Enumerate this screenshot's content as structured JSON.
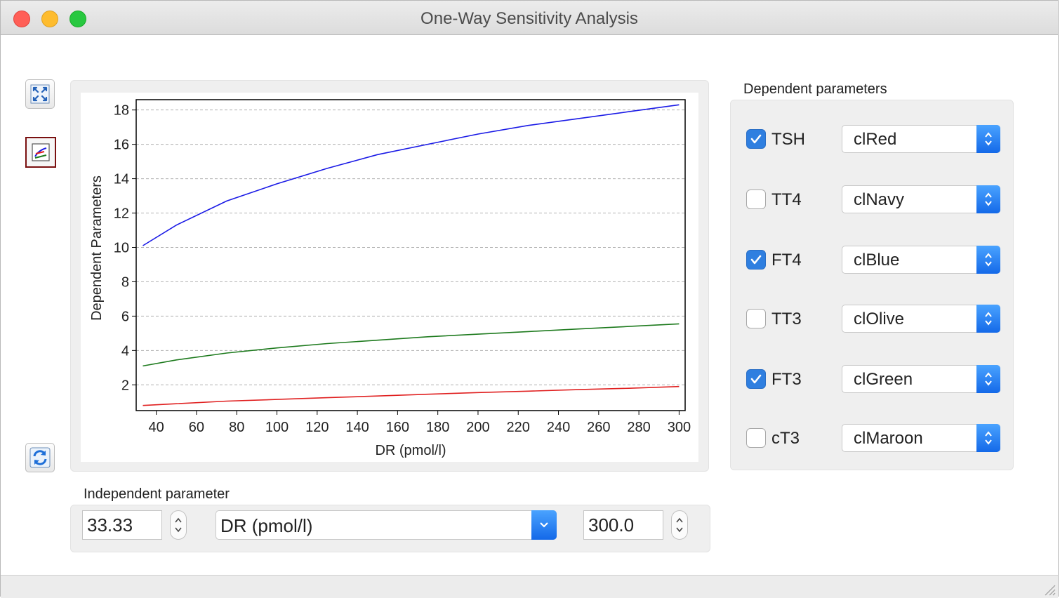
{
  "window": {
    "title": "One-Way Sensitivity Analysis"
  },
  "toolbar": {
    "buttons": [
      {
        "icon": "fit-to-window-icon"
      },
      {
        "icon": "chart-style-icon"
      },
      {
        "icon": "refresh-icon"
      }
    ]
  },
  "dependent": {
    "label": "Dependent parameters",
    "rows": [
      {
        "name": "TSH",
        "checked": true,
        "color": "clRed"
      },
      {
        "name": "TT4",
        "checked": false,
        "color": "clNavy"
      },
      {
        "name": "FT4",
        "checked": true,
        "color": "clBlue"
      },
      {
        "name": "TT3",
        "checked": false,
        "color": "clOlive"
      },
      {
        "name": "FT3",
        "checked": true,
        "color": "clGreen"
      },
      {
        "name": "cT3",
        "checked": false,
        "color": "clMaroon"
      }
    ]
  },
  "independent": {
    "label": "Independent parameter",
    "min_value": "33.33",
    "parameter": "DR (pmol/l)",
    "max_value": "300.0"
  },
  "colors": {
    "tsh": "#e02020",
    "ft4": "#1a1ae6",
    "ft3": "#1d7a1d",
    "accent": "#2f7fe0"
  },
  "chart_data": {
    "type": "line",
    "xlabel": "DR (pmol/l)",
    "ylabel": "Dependent Parameters",
    "xlim": [
      30,
      303
    ],
    "ylim": [
      0.5,
      18.6
    ],
    "xticks": [
      40,
      60,
      80,
      100,
      120,
      140,
      160,
      180,
      200,
      220,
      240,
      260,
      280,
      300
    ],
    "yticks": [
      2,
      4,
      6,
      8,
      10,
      12,
      14,
      16,
      18
    ],
    "grid": "horizontal-dashed",
    "x": [
      33.33,
      50,
      75,
      100,
      125,
      150,
      175,
      200,
      225,
      250,
      275,
      300
    ],
    "series": [
      {
        "color": "#1a1ae6",
        "values": [
          10.1,
          11.3,
          12.7,
          13.7,
          14.6,
          15.4,
          16.0,
          16.6,
          17.1,
          17.5,
          17.9,
          18.3
        ]
      },
      {
        "color": "#1d7a1d",
        "values": [
          3.1,
          3.45,
          3.85,
          4.15,
          4.4,
          4.6,
          4.8,
          4.95,
          5.1,
          5.25,
          5.4,
          5.55
        ]
      },
      {
        "color": "#e02020",
        "values": [
          0.8,
          0.9,
          1.05,
          1.15,
          1.25,
          1.35,
          1.45,
          1.55,
          1.63,
          1.72,
          1.8,
          1.9
        ]
      }
    ]
  }
}
